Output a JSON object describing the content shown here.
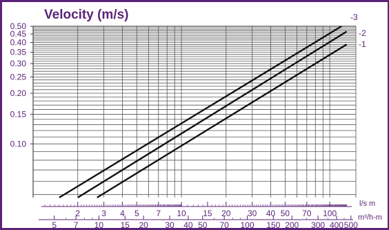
{
  "chart_data": {
    "type": "line",
    "title": "Velocity (m/s)",
    "y_scale": "log",
    "y_ticks": [
      0.1,
      0.15,
      0.2,
      0.25,
      0.3,
      0.35,
      0.4,
      0.45,
      0.5
    ],
    "y_tick_labels": [
      "0.10",
      "0.15",
      "0.20",
      "0.25",
      "0.30",
      "0.35",
      "0.40",
      "0.45",
      "0.50"
    ],
    "x_scale": "log",
    "x_axis_primary": {
      "label": "l/s m",
      "labeled_ticks": [
        2,
        3,
        4,
        5,
        7,
        10,
        15,
        20,
        30,
        40,
        50,
        70,
        100
      ],
      "tick_labels": [
        "2",
        "3",
        "4",
        "5",
        "7",
        "10",
        "15",
        "20",
        "30",
        "40",
        "50",
        "70",
        "100"
      ]
    },
    "x_axis_secondary": {
      "label": "m³/h-m",
      "labeled_ticks": [
        5,
        7,
        10,
        15,
        20,
        30,
        40,
        50,
        70,
        100,
        150,
        200,
        300,
        400,
        500
      ],
      "tick_labels": [
        "5",
        "7",
        "10",
        "15",
        "20",
        "30",
        "40",
        "50",
        "70",
        "100",
        "150",
        "200",
        "300",
        "400",
        "500"
      ]
    },
    "series": [
      {
        "name": "-3",
        "x": [
          1.5,
          120
        ],
        "y": [
          0.048,
          0.5
        ]
      },
      {
        "name": "-2",
        "x": [
          2.0,
          130
        ],
        "y": [
          0.048,
          0.465
        ]
      },
      {
        "name": "-1",
        "x": [
          2.7,
          130
        ],
        "y": [
          0.048,
          0.39
        ]
      }
    ],
    "grid": true
  }
}
